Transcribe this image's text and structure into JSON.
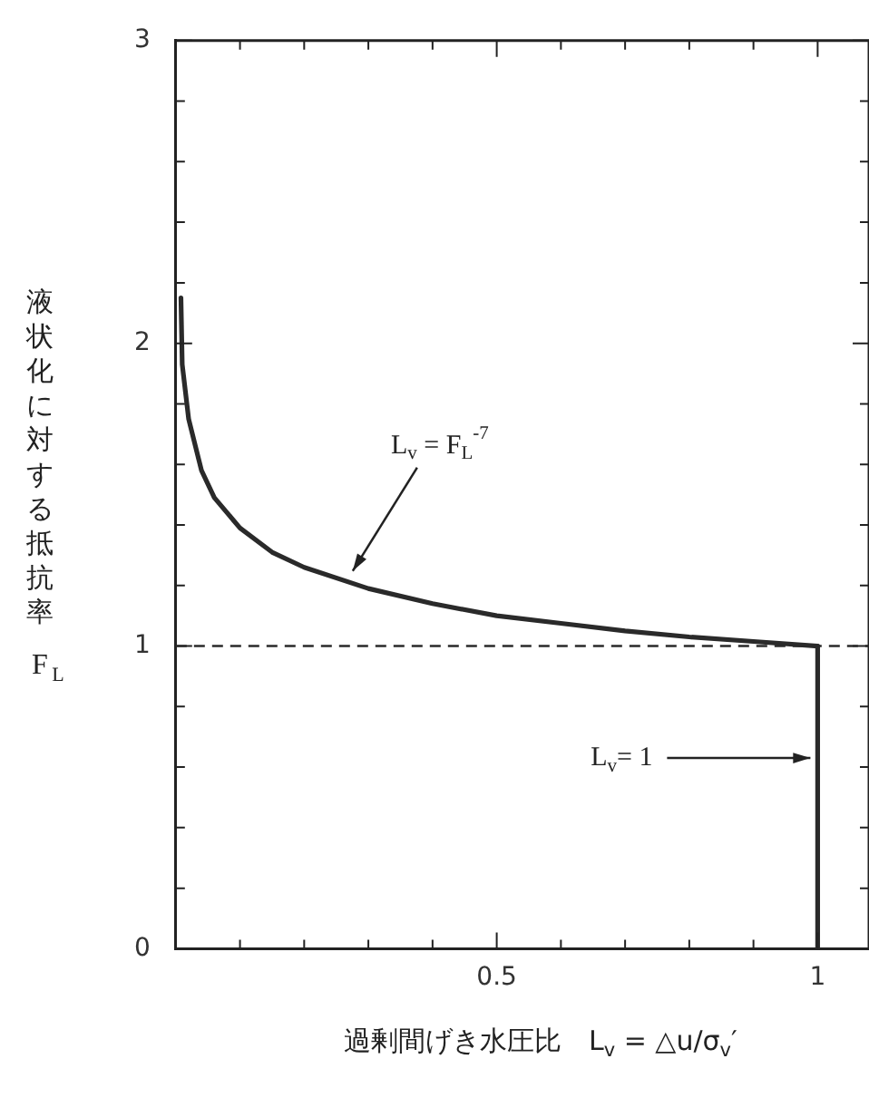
{
  "chart_data": {
    "type": "line",
    "xlabel": "過剰間げき水圧比　L$_{v}$ = △u/σ$_{v}$′",
    "ylabel": "液状化に対する抵抗率 F$_{L}$",
    "xlim": [
      0,
      1.08
    ],
    "xticks": [
      {
        "value": 0.1,
        "label": null
      },
      {
        "value": 0.2,
        "label": null
      },
      {
        "value": 0.3,
        "label": null
      },
      {
        "value": 0.4,
        "label": null
      },
      0.5,
      {
        "value": 0.6,
        "label": null
      },
      {
        "value": 0.7,
        "label": null
      },
      {
        "value": 0.8,
        "label": null
      },
      {
        "value": 0.9,
        "label": null
      },
      1
    ],
    "ylim": [
      0,
      3
    ],
    "yticks": [
      0,
      {
        "value": 0.2,
        "label": null
      },
      {
        "value": 0.4,
        "label": null
      },
      {
        "value": 0.6,
        "label": null
      },
      {
        "value": 0.8,
        "label": null
      },
      1,
      {
        "value": 1.2,
        "label": null
      },
      {
        "value": 1.4,
        "label": null
      },
      {
        "value": 1.6,
        "label": null
      },
      {
        "value": 1.8,
        "label": null
      },
      2,
      {
        "value": 2.2,
        "label": null
      },
      {
        "value": 2.4,
        "label": null
      },
      {
        "value": 2.6,
        "label": null
      },
      {
        "value": 2.8,
        "label": null
      },
      3
    ],
    "series": [
      {
        "color": "#2a2a2a",
        "x": [
          0.008,
          0.01,
          0.02,
          0.04,
          0.06,
          0.1,
          0.15,
          0.2,
          0.3,
          0.4,
          0.5,
          0.6,
          0.7,
          0.8,
          0.9,
          1
        ],
        "values": [
          2.15,
          1.93,
          1.75,
          1.58,
          1.49,
          1.39,
          1.31,
          1.26,
          1.19,
          1.14,
          1.1,
          1.075,
          1.05,
          1.03,
          1.015,
          1
        ]
      },
      {
        "color": "#2a2a2a",
        "x": [
          1,
          1
        ],
        "values": [
          0,
          1
        ]
      }
    ],
    "ref_lines": [
      {
        "axis": "y",
        "value": 1,
        "line_style": "dashed",
        "color": "#2a2a2a"
      }
    ],
    "annotations": [
      {
        "text": "L$_{v}$ = F$_{L}$$^{-7}$",
        "x": 0.27,
        "y": 1.23
      },
      {
        "text": "L$_{v}$= 1",
        "x": 1,
        "y": 0.63
      }
    ],
    "legend": false,
    "marker": "none",
    "line_style": "solid"
  }
}
